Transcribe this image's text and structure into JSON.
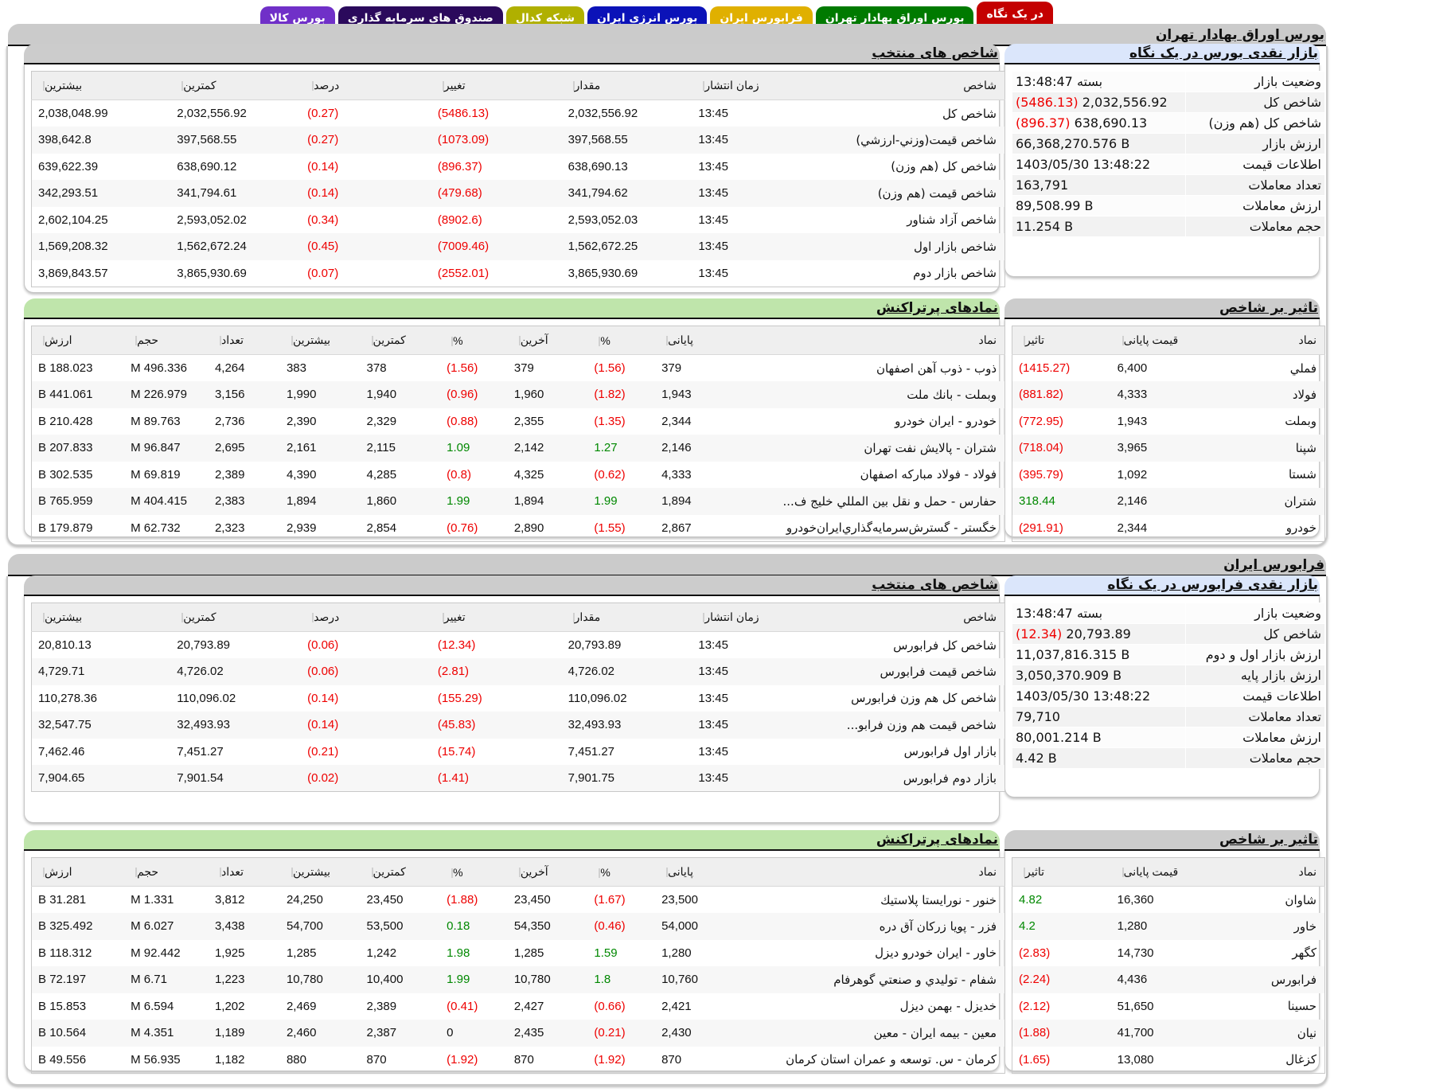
{
  "tabs": [
    {
      "label": "در یک نگاه",
      "color": "#c40000",
      "active": true
    },
    {
      "label": "بورس اوراق بهادار تهران",
      "color": "#007a00",
      "active": false
    },
    {
      "label": "فرابورس ایران",
      "color": "#e0b000",
      "active": false
    },
    {
      "label": "بورس انرژی ایران",
      "color": "#0b12b8",
      "active": false
    },
    {
      "label": "شبکه کدال",
      "color": "#b0b000",
      "active": false
    },
    {
      "label": "صندوق های سرمایه گذاری",
      "color": "#2b0a5c",
      "active": false
    },
    {
      "label": "بورس کالا",
      "color": "#7030c8",
      "active": false
    }
  ],
  "tse": {
    "title": "بورس اوراق بهادار تهران",
    "summary": {
      "title": "بازار نقدی بورس در یک نگاه",
      "rows": [
        {
          "label": "وضعیت بازار",
          "value": "بسته 13:48:47",
          "change": ""
        },
        {
          "label": "شاخص کل",
          "value": "2,032,556.92",
          "change": "(5486.13)"
        },
        {
          "label": "شاخص کل (هم وزن)",
          "value": "638,690.13",
          "change": "(896.37)"
        },
        {
          "label": "ارزش بازار",
          "value": "66,368,270.576 B",
          "change": ""
        },
        {
          "label": "اطلاعات قیمت",
          "value": "1403/05/30 13:48:22",
          "change": ""
        },
        {
          "label": "تعداد معاملات",
          "value": "163,791",
          "change": ""
        },
        {
          "label": "ارزش معاملات",
          "value": "89,508.99 B",
          "change": ""
        },
        {
          "label": "حجم معاملات",
          "value": "11.254 B",
          "change": ""
        }
      ]
    },
    "indices": {
      "title": "شاخص های منتخب",
      "headers": [
        "شاخص",
        "زمان انتشار",
        "مقدار",
        "تغییر",
        "درصد",
        "کمترین",
        "بیشترین"
      ],
      "rows": [
        {
          "name": "شاخص کل",
          "time": "13:45",
          "value": "2,032,556.92",
          "change": "(5486.13)",
          "pct": "(0.27)",
          "low": "2,032,556.92",
          "high": "2,038,048.99",
          "dir": "neg"
        },
        {
          "name": "شاخص قیمت(وزني-ارزشي)",
          "time": "13:45",
          "value": "397,568.55",
          "change": "(1073.09)",
          "pct": "(0.27)",
          "low": "397,568.55",
          "high": "398,642.8",
          "dir": "neg"
        },
        {
          "name": "شاخص کل (هم وزن)",
          "time": "13:45",
          "value": "638,690.13",
          "change": "(896.37)",
          "pct": "(0.14)",
          "low": "638,690.12",
          "high": "639,622.39",
          "dir": "neg"
        },
        {
          "name": "شاخص قیمت (هم وزن)",
          "time": "13:45",
          "value": "341,794.62",
          "change": "(479.68)",
          "pct": "(0.14)",
          "low": "341,794.61",
          "high": "342,293.51",
          "dir": "neg"
        },
        {
          "name": "شاخص آزاد شناور",
          "time": "13:45",
          "value": "2,593,052.03",
          "change": "(8902.6)",
          "pct": "(0.34)",
          "low": "2,593,052.02",
          "high": "2,602,104.25",
          "dir": "neg"
        },
        {
          "name": "شاخص بازار اول",
          "time": "13:45",
          "value": "1,562,672.25",
          "change": "(7009.46)",
          "pct": "(0.45)",
          "low": "1,562,672.24",
          "high": "1,569,208.32",
          "dir": "neg"
        },
        {
          "name": "شاخص بازار دوم",
          "time": "13:45",
          "value": "3,865,930.69",
          "change": "(2552.01)",
          "pct": "(0.07)",
          "low": "3,865,930.69",
          "high": "3,869,843.57",
          "dir": "neg"
        }
      ]
    },
    "impact": {
      "title": "تاثیر بر شاخص",
      "headers": [
        "نماد",
        "قیمت پایانی",
        "تاثیر"
      ],
      "rows": [
        {
          "symbol": "فملي",
          "close": "6,400",
          "impact": "(1415.27)",
          "dir": "neg"
        },
        {
          "symbol": "فولاد",
          "close": "4,333",
          "impact": "(881.82)",
          "dir": "neg"
        },
        {
          "symbol": "وبملت",
          "close": "1,943",
          "impact": "(772.95)",
          "dir": "neg"
        },
        {
          "symbol": "شپنا",
          "close": "3,965",
          "impact": "(718.04)",
          "dir": "neg"
        },
        {
          "symbol": "شستا",
          "close": "1,092",
          "impact": "(395.79)",
          "dir": "neg"
        },
        {
          "symbol": "شتران",
          "close": "2,146",
          "impact": "318.44",
          "dir": "pos"
        },
        {
          "symbol": "خودرو",
          "close": "2,344",
          "impact": "(291.91)",
          "dir": "neg"
        }
      ]
    },
    "active": {
      "title": "نمادهای پرتراکنش",
      "headers": [
        "نماد",
        "پایانی",
        "%",
        "آخرین",
        "%",
        "کمترین",
        "بیشترین",
        "تعداد",
        "حجم",
        "ارزش"
      ],
      "rows": [
        {
          "name": "ذوب - ذوب آهن اصفهان",
          "close": "379",
          "close_pct": "(1.56)",
          "close_dir": "neg",
          "last": "379",
          "last_pct": "(1.56)",
          "last_dir": "neg",
          "low": "378",
          "high": "383",
          "count": "4,264",
          "volume": "496.336 M",
          "value": "188.023 B"
        },
        {
          "name": "وبملت - بانك ملت",
          "close": "1,943",
          "close_pct": "(1.82)",
          "close_dir": "neg",
          "last": "1,960",
          "last_pct": "(0.96)",
          "last_dir": "neg",
          "low": "1,940",
          "high": "1,990",
          "count": "3,156",
          "volume": "226.979 M",
          "value": "441.061 B"
        },
        {
          "name": "خودرو - ايران خودرو",
          "close": "2,344",
          "close_pct": "(1.35)",
          "close_dir": "neg",
          "last": "2,355",
          "last_pct": "(0.88)",
          "last_dir": "neg",
          "low": "2,329",
          "high": "2,390",
          "count": "2,736",
          "volume": "89.763 M",
          "value": "210.428 B"
        },
        {
          "name": "شتران - پالايش نفت تهران",
          "close": "2,146",
          "close_pct": "1.27",
          "close_dir": "pos",
          "last": "2,142",
          "last_pct": "1.09",
          "last_dir": "pos",
          "low": "2,115",
          "high": "2,161",
          "count": "2,695",
          "volume": "96.847 M",
          "value": "207.833 B"
        },
        {
          "name": "فولاد - فولاد مباركه اصفهان",
          "close": "4,333",
          "close_pct": "(0.62)",
          "close_dir": "neg",
          "last": "4,325",
          "last_pct": "(0.8)",
          "last_dir": "neg",
          "low": "4,285",
          "high": "4,390",
          "count": "2,389",
          "volume": "69.819 M",
          "value": "302.535 B"
        },
        {
          "name": "حفارس - حمل و نقل بين المللي خليج ف...",
          "close": "1,894",
          "close_pct": "1.99",
          "close_dir": "pos",
          "last": "1,894",
          "last_pct": "1.99",
          "last_dir": "pos",
          "low": "1,860",
          "high": "1,894",
          "count": "2,383",
          "volume": "404.415 M",
          "value": "765.959 B"
        },
        {
          "name": "خگستر - گسترش‌سرمايه‌گذاري‌ايران‌خودرو",
          "close": "2,867",
          "close_pct": "(1.55)",
          "close_dir": "neg",
          "last": "2,890",
          "last_pct": "(0.76)",
          "last_dir": "neg",
          "low": "2,854",
          "high": "2,939",
          "count": "2,323",
          "volume": "62.732 M",
          "value": "179.879 B"
        }
      ]
    }
  },
  "ifb": {
    "title": "فرابورس ایران",
    "summary": {
      "title": "بازار نقدی فرابورس در یک نگاه",
      "rows": [
        {
          "label": "وضعیت بازار",
          "value": "بسته 13:48:47",
          "change": ""
        },
        {
          "label": "شاخص کل",
          "value": "20,793.89",
          "change": "(12.34)"
        },
        {
          "label": "ارزش بازار اول و دوم",
          "value": "11,037,816.315 B",
          "change": ""
        },
        {
          "label": "ارزش بازار پایه",
          "value": "3,050,370.909 B",
          "change": ""
        },
        {
          "label": "اطلاعات قیمت",
          "value": "1403/05/30 13:48:22",
          "change": ""
        },
        {
          "label": "تعداد معاملات",
          "value": "79,710",
          "change": ""
        },
        {
          "label": "ارزش معاملات",
          "value": "80,001.214 B",
          "change": ""
        },
        {
          "label": "حجم معاملات",
          "value": "4.42 B",
          "change": ""
        }
      ]
    },
    "indices": {
      "title": "شاخص های منتخب",
      "headers": [
        "شاخص",
        "زمان انتشار",
        "مقدار",
        "تغییر",
        "درصد",
        "کمترین",
        "بیشترین"
      ],
      "rows": [
        {
          "name": "شاخص کل فرابورس",
          "time": "13:45",
          "value": "20,793.89",
          "change": "(12.34)",
          "pct": "(0.06)",
          "low": "20,793.89",
          "high": "20,810.13",
          "dir": "neg"
        },
        {
          "name": "شاخص قیمت فرابورس",
          "time": "13:45",
          "value": "4,726.02",
          "change": "(2.81)",
          "pct": "(0.06)",
          "low": "4,726.02",
          "high": "4,729.71",
          "dir": "neg"
        },
        {
          "name": "شاخص کل هم وزن فرابورس",
          "time": "13:45",
          "value": "110,096.02",
          "change": "(155.29)",
          "pct": "(0.14)",
          "low": "110,096.02",
          "high": "110,278.36",
          "dir": "neg"
        },
        {
          "name": "شاخص قیمت هم وزن فرابو...",
          "time": "13:45",
          "value": "32,493.93",
          "change": "(45.83)",
          "pct": "(0.14)",
          "low": "32,493.93",
          "high": "32,547.75",
          "dir": "neg"
        },
        {
          "name": "بازار اول فرابورس",
          "time": "13:45",
          "value": "7,451.27",
          "change": "(15.74)",
          "pct": "(0.21)",
          "low": "7,451.27",
          "high": "7,462.46",
          "dir": "neg"
        },
        {
          "name": "بازار دوم فرابورس",
          "time": "13:45",
          "value": "7,901.75",
          "change": "(1.41)",
          "pct": "(0.02)",
          "low": "7,901.54",
          "high": "7,904.65",
          "dir": "neg"
        }
      ]
    },
    "impact": {
      "title": "تاثیر بر شاخص",
      "headers": [
        "نماد",
        "قیمت پایانی",
        "تاثیر"
      ],
      "rows": [
        {
          "symbol": "شاوان",
          "close": "16,360",
          "impact": "4.82",
          "dir": "pos"
        },
        {
          "symbol": "خاور",
          "close": "1,280",
          "impact": "4.2",
          "dir": "pos"
        },
        {
          "symbol": "کگهر",
          "close": "14,730",
          "impact": "(2.83)",
          "dir": "neg"
        },
        {
          "symbol": "فرابورس",
          "close": "4,436",
          "impact": "(2.24)",
          "dir": "neg"
        },
        {
          "symbol": "حسينا",
          "close": "51,650",
          "impact": "(2.12)",
          "dir": "neg"
        },
        {
          "symbol": "نيان",
          "close": "41,700",
          "impact": "(1.88)",
          "dir": "neg"
        },
        {
          "symbol": "کزغال",
          "close": "13,080",
          "impact": "(1.65)",
          "dir": "neg"
        }
      ]
    },
    "active": {
      "title": "نمادهای پرتراکنش",
      "headers": [
        "نماد",
        "پایانی",
        "%",
        "آخرین",
        "%",
        "کمترین",
        "بیشترین",
        "تعداد",
        "حجم",
        "ارزش"
      ],
      "rows": [
        {
          "name": "خنور - نورايستا پلاستيك",
          "close": "23,500",
          "close_pct": "(1.67)",
          "close_dir": "neg",
          "last": "23,450",
          "last_pct": "(1.88)",
          "last_dir": "neg",
          "low": "23,450",
          "high": "24,250",
          "count": "3,812",
          "volume": "1.331 M",
          "value": "31.281 B"
        },
        {
          "name": "فزر - پويا زركان آق دره",
          "close": "54,000",
          "close_pct": "(0.46)",
          "close_dir": "neg",
          "last": "54,350",
          "last_pct": "0.18",
          "last_dir": "pos",
          "low": "53,500",
          "high": "54,700",
          "count": "3,438",
          "volume": "6.027 M",
          "value": "325.492 B"
        },
        {
          "name": "خاور - ايران خودرو ديزل",
          "close": "1,280",
          "close_pct": "1.59",
          "close_dir": "pos",
          "last": "1,285",
          "last_pct": "1.98",
          "last_dir": "pos",
          "low": "1,242",
          "high": "1,285",
          "count": "1,925",
          "volume": "92.442 M",
          "value": "118.312 B"
        },
        {
          "name": "شفام - توليدي و صنعتي گوهرفام",
          "close": "10,760",
          "close_pct": "1.8",
          "close_dir": "pos",
          "last": "10,780",
          "last_pct": "1.99",
          "last_dir": "pos",
          "low": "10,400",
          "high": "10,780",
          "count": "1,223",
          "volume": "6.71 M",
          "value": "72.197 B"
        },
        {
          "name": "خديزل - بهمن ديزل",
          "close": "2,421",
          "close_pct": "(0.66)",
          "close_dir": "neg",
          "last": "2,427",
          "last_pct": "(0.41)",
          "last_dir": "neg",
          "low": "2,389",
          "high": "2,469",
          "count": "1,202",
          "volume": "6.594 M",
          "value": "15.853 B"
        },
        {
          "name": "معين - بيمه ايران - معين",
          "close": "2,430",
          "close_pct": "(0.21)",
          "close_dir": "neg",
          "last": "2,435",
          "last_pct": "0",
          "last_dir": "zero",
          "low": "2,387",
          "high": "2,460",
          "count": "1,189",
          "volume": "4.351 M",
          "value": "10.564 B"
        },
        {
          "name": "كرمان - س. توسعه و عمران استان كرمان",
          "close": "870",
          "close_pct": "(1.92)",
          "close_dir": "neg",
          "last": "870",
          "last_pct": "(1.92)",
          "last_dir": "neg",
          "low": "870",
          "high": "880",
          "count": "1,182",
          "volume": "56.935 M",
          "value": "49.556 B"
        }
      ]
    }
  },
  "colors": {
    "negative": "#ee0000",
    "positive": "#008800",
    "header_gray": "#cccccc",
    "header_green": "#bfe5ab",
    "header_blue": "#dbe6fb"
  }
}
